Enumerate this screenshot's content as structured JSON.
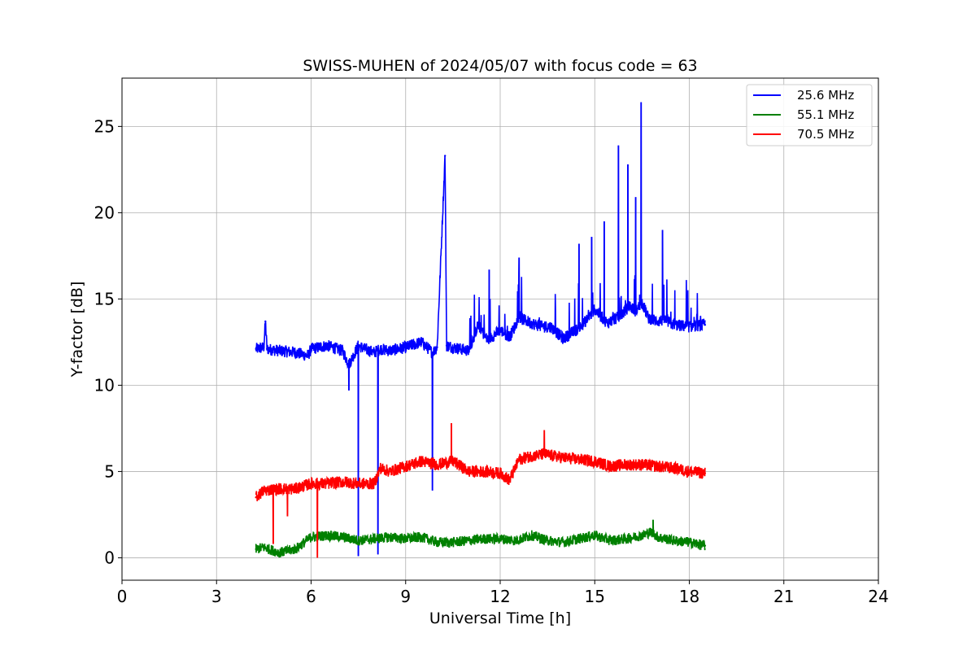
{
  "chart_data": {
    "type": "line",
    "title": "SWISS-MUHEN of 2024/05/07 with focus code = 63",
    "xlabel": "Universal Time [h]",
    "ylabel": "Y-factor [dB]",
    "xlim": [
      0,
      24
    ],
    "ylim": [
      -1.3,
      27.8
    ],
    "xticks": [
      0,
      3,
      6,
      9,
      12,
      15,
      18,
      21,
      24
    ],
    "yticks": [
      0,
      5,
      10,
      15,
      20,
      25
    ],
    "grid": true,
    "legend_position": "top-right",
    "series": [
      {
        "name": "25.6 MHz",
        "color": "#0000ff",
        "x": [
          4.25,
          4.5,
          4.55,
          4.6,
          5.0,
          5.5,
          5.9,
          6.0,
          6.5,
          7.0,
          7.2,
          7.5,
          7.7,
          8.0,
          8.2,
          8.5,
          9.0,
          9.5,
          9.85,
          10.0,
          10.25,
          10.3,
          10.5,
          11.0,
          11.3,
          11.6,
          12.0,
          12.3,
          12.6,
          13.0,
          13.3,
          13.6,
          14.0,
          14.5,
          14.8,
          15.0,
          15.4,
          15.8,
          16.1,
          16.3,
          16.5,
          16.7,
          17.0,
          17.2,
          17.5,
          18.0,
          18.5
        ],
        "values": [
          12.1,
          12.2,
          13.7,
          12.1,
          12.0,
          11.9,
          11.7,
          12.1,
          12.3,
          12.0,
          11.2,
          12.3,
          12.1,
          11.9,
          12.1,
          12.0,
          12.2,
          12.5,
          11.9,
          12.2,
          23.3,
          12.3,
          12.2,
          12.0,
          13.5,
          12.6,
          13.2,
          12.8,
          13.9,
          13.6,
          13.4,
          13.4,
          12.7,
          13.3,
          13.9,
          14.4,
          13.6,
          14.0,
          14.6,
          14.3,
          14.8,
          13.9,
          13.7,
          13.8,
          13.5,
          13.4,
          13.5
        ],
        "spikes": [
          {
            "x": 4.55,
            "value": 13.7
          },
          {
            "x": 7.2,
            "value": 9.7
          },
          {
            "x": 7.5,
            "value": 0.1
          },
          {
            "x": 8.12,
            "value": 0.2
          },
          {
            "x": 9.85,
            "value": 3.9
          },
          {
            "x": 10.25,
            "value": 23.3
          },
          {
            "x": 11.65,
            "value": 16.7
          },
          {
            "x": 12.6,
            "value": 17.4
          },
          {
            "x": 14.5,
            "value": 18.2
          },
          {
            "x": 14.9,
            "value": 18.6
          },
          {
            "x": 15.3,
            "value": 19.5
          },
          {
            "x": 15.75,
            "value": 23.9
          },
          {
            "x": 16.05,
            "value": 22.8
          },
          {
            "x": 16.3,
            "value": 20.9
          },
          {
            "x": 16.47,
            "value": 26.4
          },
          {
            "x": 17.15,
            "value": 19.0
          }
        ]
      },
      {
        "name": "55.1 MHz",
        "color": "#008000",
        "x": [
          4.25,
          4.5,
          5.0,
          5.5,
          6.0,
          6.5,
          7.0,
          7.5,
          8.0,
          8.5,
          9.0,
          9.5,
          10.0,
          10.5,
          11.0,
          11.5,
          12.0,
          12.5,
          13.0,
          13.5,
          14.0,
          14.5,
          15.0,
          15.5,
          16.0,
          16.5,
          16.8,
          17.0,
          17.5,
          18.0,
          18.5
        ],
        "values": [
          0.5,
          0.6,
          0.3,
          0.5,
          1.2,
          1.3,
          1.2,
          1.0,
          1.1,
          1.2,
          1.1,
          1.2,
          0.9,
          0.9,
          1.0,
          1.1,
          1.1,
          1.0,
          1.3,
          1.0,
          0.9,
          1.1,
          1.3,
          1.0,
          1.1,
          1.3,
          1.5,
          1.2,
          1.0,
          0.9,
          0.7
        ],
        "spikes": [
          {
            "x": 16.85,
            "value": 2.2
          }
        ]
      },
      {
        "name": "70.5 MHz",
        "color": "#ff0000",
        "x": [
          4.25,
          4.5,
          5.0,
          5.5,
          6.0,
          6.5,
          7.0,
          7.5,
          8.0,
          8.2,
          8.5,
          9.0,
          9.5,
          10.0,
          10.5,
          11.0,
          11.5,
          12.0,
          12.3,
          12.6,
          13.0,
          13.4,
          14.0,
          14.5,
          15.0,
          15.5,
          16.0,
          16.5,
          17.0,
          17.5,
          18.0,
          18.5
        ],
        "values": [
          3.5,
          3.9,
          4.0,
          4.0,
          4.3,
          4.3,
          4.4,
          4.3,
          4.3,
          5.2,
          5.0,
          5.3,
          5.6,
          5.4,
          5.6,
          5.0,
          5.0,
          4.9,
          4.5,
          5.7,
          5.9,
          6.0,
          5.8,
          5.7,
          5.6,
          5.3,
          5.4,
          5.4,
          5.3,
          5.2,
          5.0,
          4.9
        ],
        "spikes": [
          {
            "x": 4.8,
            "value": 0.8
          },
          {
            "x": 5.25,
            "value": 2.4
          },
          {
            "x": 6.2,
            "value": 0.0
          },
          {
            "x": 10.45,
            "value": 7.8
          },
          {
            "x": 13.4,
            "value": 7.4
          }
        ]
      }
    ]
  }
}
